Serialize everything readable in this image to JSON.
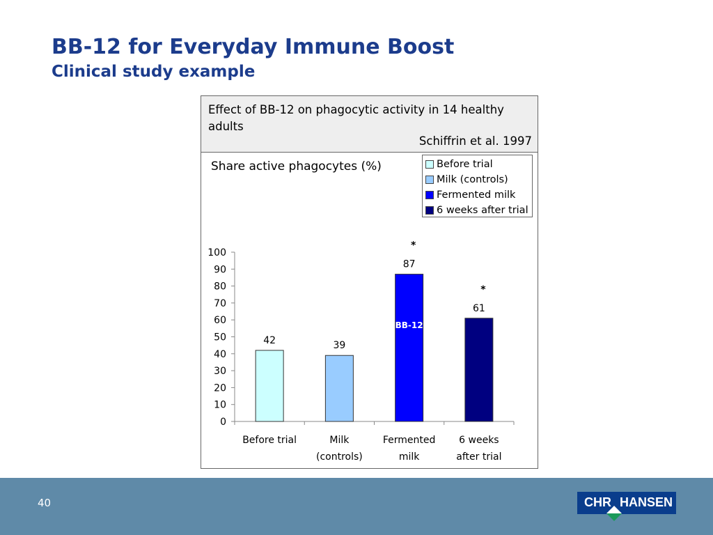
{
  "slide": {
    "title": "BB-12 for Everyday Immune Boost",
    "subtitle": "Clinical study example",
    "page_number": "40"
  },
  "box": {
    "description": "Effect of BB-12 on phagocytic activity in 14 healthy adults",
    "citation": "Schiffrin et al. 1997"
  },
  "logo": {
    "left": "CHR",
    "right": "HANSEN"
  },
  "chart_data": {
    "type": "bar",
    "ylabel": "Share active phagocytes (%)",
    "ylim": [
      0,
      100
    ],
    "yticks": [
      0,
      10,
      20,
      30,
      40,
      50,
      60,
      70,
      80,
      90,
      100
    ],
    "categories": [
      "Before trial",
      "Milk (controls)",
      "Fermented milk",
      "6 weeks after trial"
    ],
    "category_labels": [
      [
        "Before trial",
        ""
      ],
      [
        "Milk",
        "(controls)"
      ],
      [
        "Fermented",
        "milk"
      ],
      [
        "6 weeks",
        "after trial"
      ]
    ],
    "values": [
      42,
      39,
      87,
      61
    ],
    "colors": [
      "#ccffff",
      "#99ccff",
      "#0000ff",
      "#000080"
    ],
    "significance": [
      "",
      "",
      "*",
      "*"
    ],
    "bar_annotation": {
      "index": 2,
      "text": "BB-12"
    },
    "legend": {
      "placement": "top-right",
      "entries": [
        "Before trial",
        "Milk (controls)",
        "Fermented milk",
        "6 weeks after trial"
      ]
    }
  }
}
